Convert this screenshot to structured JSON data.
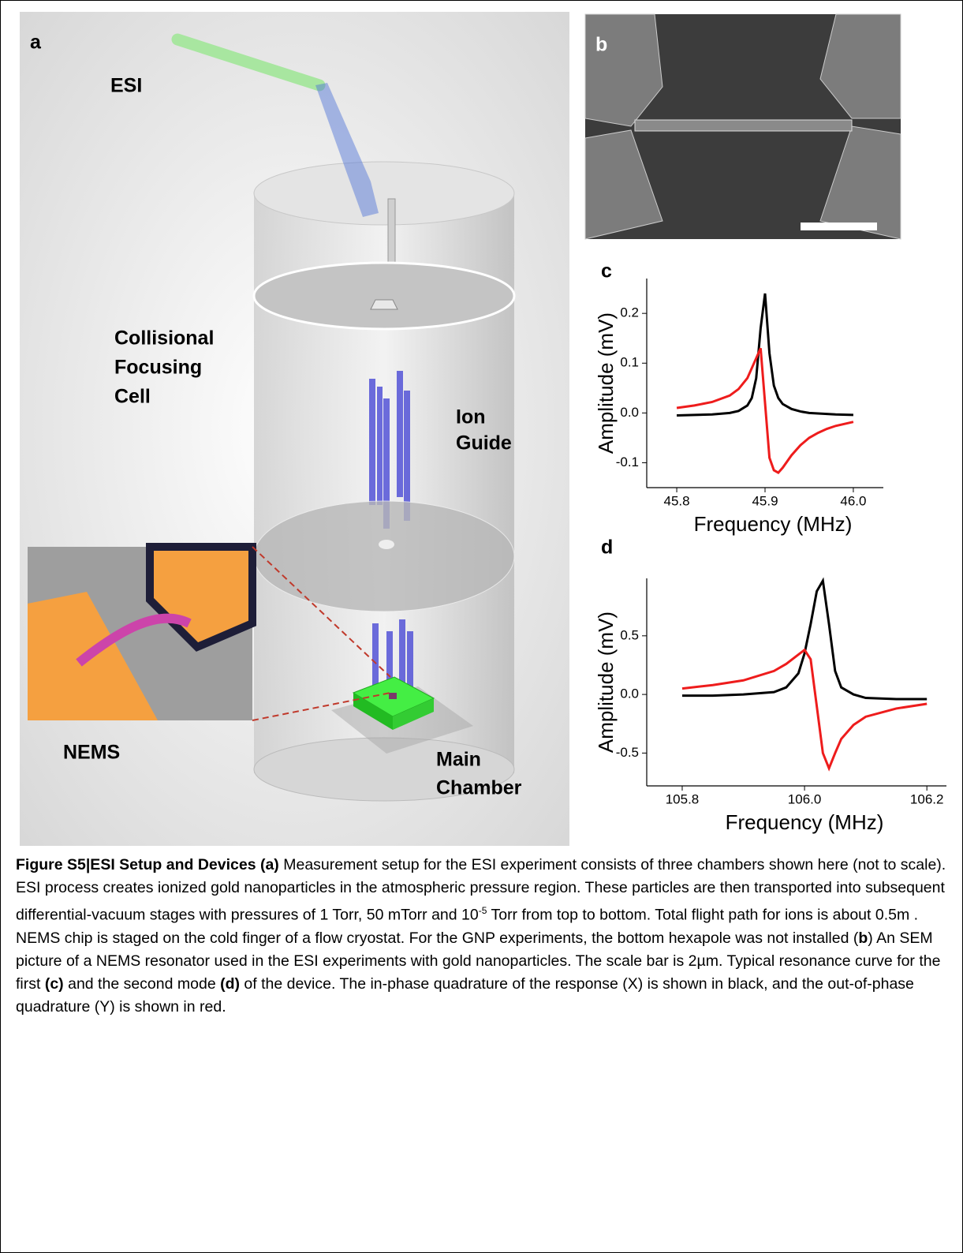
{
  "panel_a": {
    "label": "a",
    "esi": "ESI",
    "collisional": [
      "Collisional",
      "Focusing",
      "Cell"
    ],
    "ion_guide": [
      "Ion",
      "Guide"
    ],
    "nems": "NEMS",
    "main_chamber": [
      "Main",
      "Chamber"
    ]
  },
  "panel_b": {
    "label": "b"
  },
  "chart_data": [
    {
      "type": "line",
      "label": "c",
      "x_label": "Frequency (MHz)",
      "y_label": "Amplitude (mV)",
      "x": [
        45.8,
        45.82,
        45.84,
        45.86,
        45.87,
        45.88,
        45.885,
        45.89,
        45.895,
        45.9,
        45.905,
        45.91,
        45.915,
        45.92,
        45.93,
        45.94,
        45.95,
        45.96,
        45.97,
        45.98,
        46.0
      ],
      "series": [
        {
          "color": "#000000",
          "values": [
            -0.005,
            -0.004,
            -0.003,
            0.0,
            0.004,
            0.015,
            0.03,
            0.07,
            0.17,
            0.24,
            0.12,
            0.055,
            0.03,
            0.018,
            0.008,
            0.003,
            0.0,
            -0.001,
            -0.002,
            -0.003,
            -0.004
          ]
        },
        {
          "color": "#ee1c1c",
          "values": [
            0.01,
            0.015,
            0.022,
            0.035,
            0.048,
            0.07,
            0.09,
            0.11,
            0.13,
            0.02,
            -0.09,
            -0.115,
            -0.12,
            -0.11,
            -0.085,
            -0.065,
            -0.05,
            -0.04,
            -0.032,
            -0.026,
            -0.018
          ]
        }
      ],
      "xlim": [
        45.766,
        46.034
      ],
      "xticks": [
        45.8,
        45.9,
        {
          "value": 46.0,
          "label": "46.0"
        }
      ],
      "ylim": [
        -0.15,
        0.27
      ],
      "yticks": [
        -0.1,
        {
          "value": 0.0,
          "label": "0.0"
        },
        0.1,
        0.2
      ]
    },
    {
      "type": "line",
      "label": "d",
      "x_label": "Frequency (MHz)",
      "y_label": "Amplitude (mV)",
      "x": [
        105.8,
        105.85,
        105.9,
        105.95,
        105.97,
        105.99,
        106.0,
        106.01,
        106.02,
        106.03,
        106.04,
        106.05,
        106.06,
        106.08,
        106.1,
        106.15,
        106.2
      ],
      "series": [
        {
          "color": "#000000",
          "values": [
            -0.01,
            -0.01,
            0.0,
            0.02,
            0.06,
            0.18,
            0.35,
            0.6,
            0.88,
            0.97,
            0.6,
            0.2,
            0.06,
            0.0,
            -0.03,
            -0.04,
            -0.04
          ]
        },
        {
          "color": "#ee1c1c",
          "values": [
            0.05,
            0.08,
            0.12,
            0.2,
            0.26,
            0.34,
            0.38,
            0.3,
            -0.1,
            -0.5,
            -0.63,
            -0.5,
            -0.38,
            -0.26,
            -0.19,
            -0.12,
            -0.08
          ]
        }
      ],
      "xlim": [
        105.742,
        106.232
      ],
      "xticks": [
        105.8,
        {
          "value": 106.0,
          "label": "106.0"
        },
        106.2
      ],
      "ylim": [
        -0.78,
        0.99
      ],
      "yticks": [
        -0.5,
        {
          "value": 0.0,
          "label": "0.0"
        },
        0.5
      ]
    }
  ],
  "caption": [
    {
      "text": "Figure S5|ESI Setup and Devices (a)",
      "bold": true
    },
    {
      "text": " Measurement setup for the ESI experiment consists of three chambers shown here (not to scale). ESI process creates ionized gold nanoparticles in the atmospheric pressure region. These particles are then transported into subsequent differential-vacuum stages with pressures of 1 Torr, 50 mTorr and 10"
    },
    {
      "text": "-5",
      "sup": true
    },
    {
      "text": " Torr from top to bottom. Total flight path for ions is about 0.5m . NEMS chip is staged on the cold finger of a flow cryostat.  For the GNP experiments, the bottom hexapole was not installed ("
    },
    {
      "text": "b",
      "bold": true
    },
    {
      "text": ") An SEM picture of a NEMS resonator used in the ESI experiments with gold nanoparticles. The scale bar is 2µm. Typical resonance curve  for the first "
    },
    {
      "text": "(c)",
      "bold": true
    },
    {
      "text": " and the second mode "
    },
    {
      "text": "(d)",
      "bold": true
    },
    {
      "text": " of the device. The in-phase quadrature of the response (X) is shown in black, and the out-of-phase quadrature (Y) is shown in red."
    }
  ]
}
